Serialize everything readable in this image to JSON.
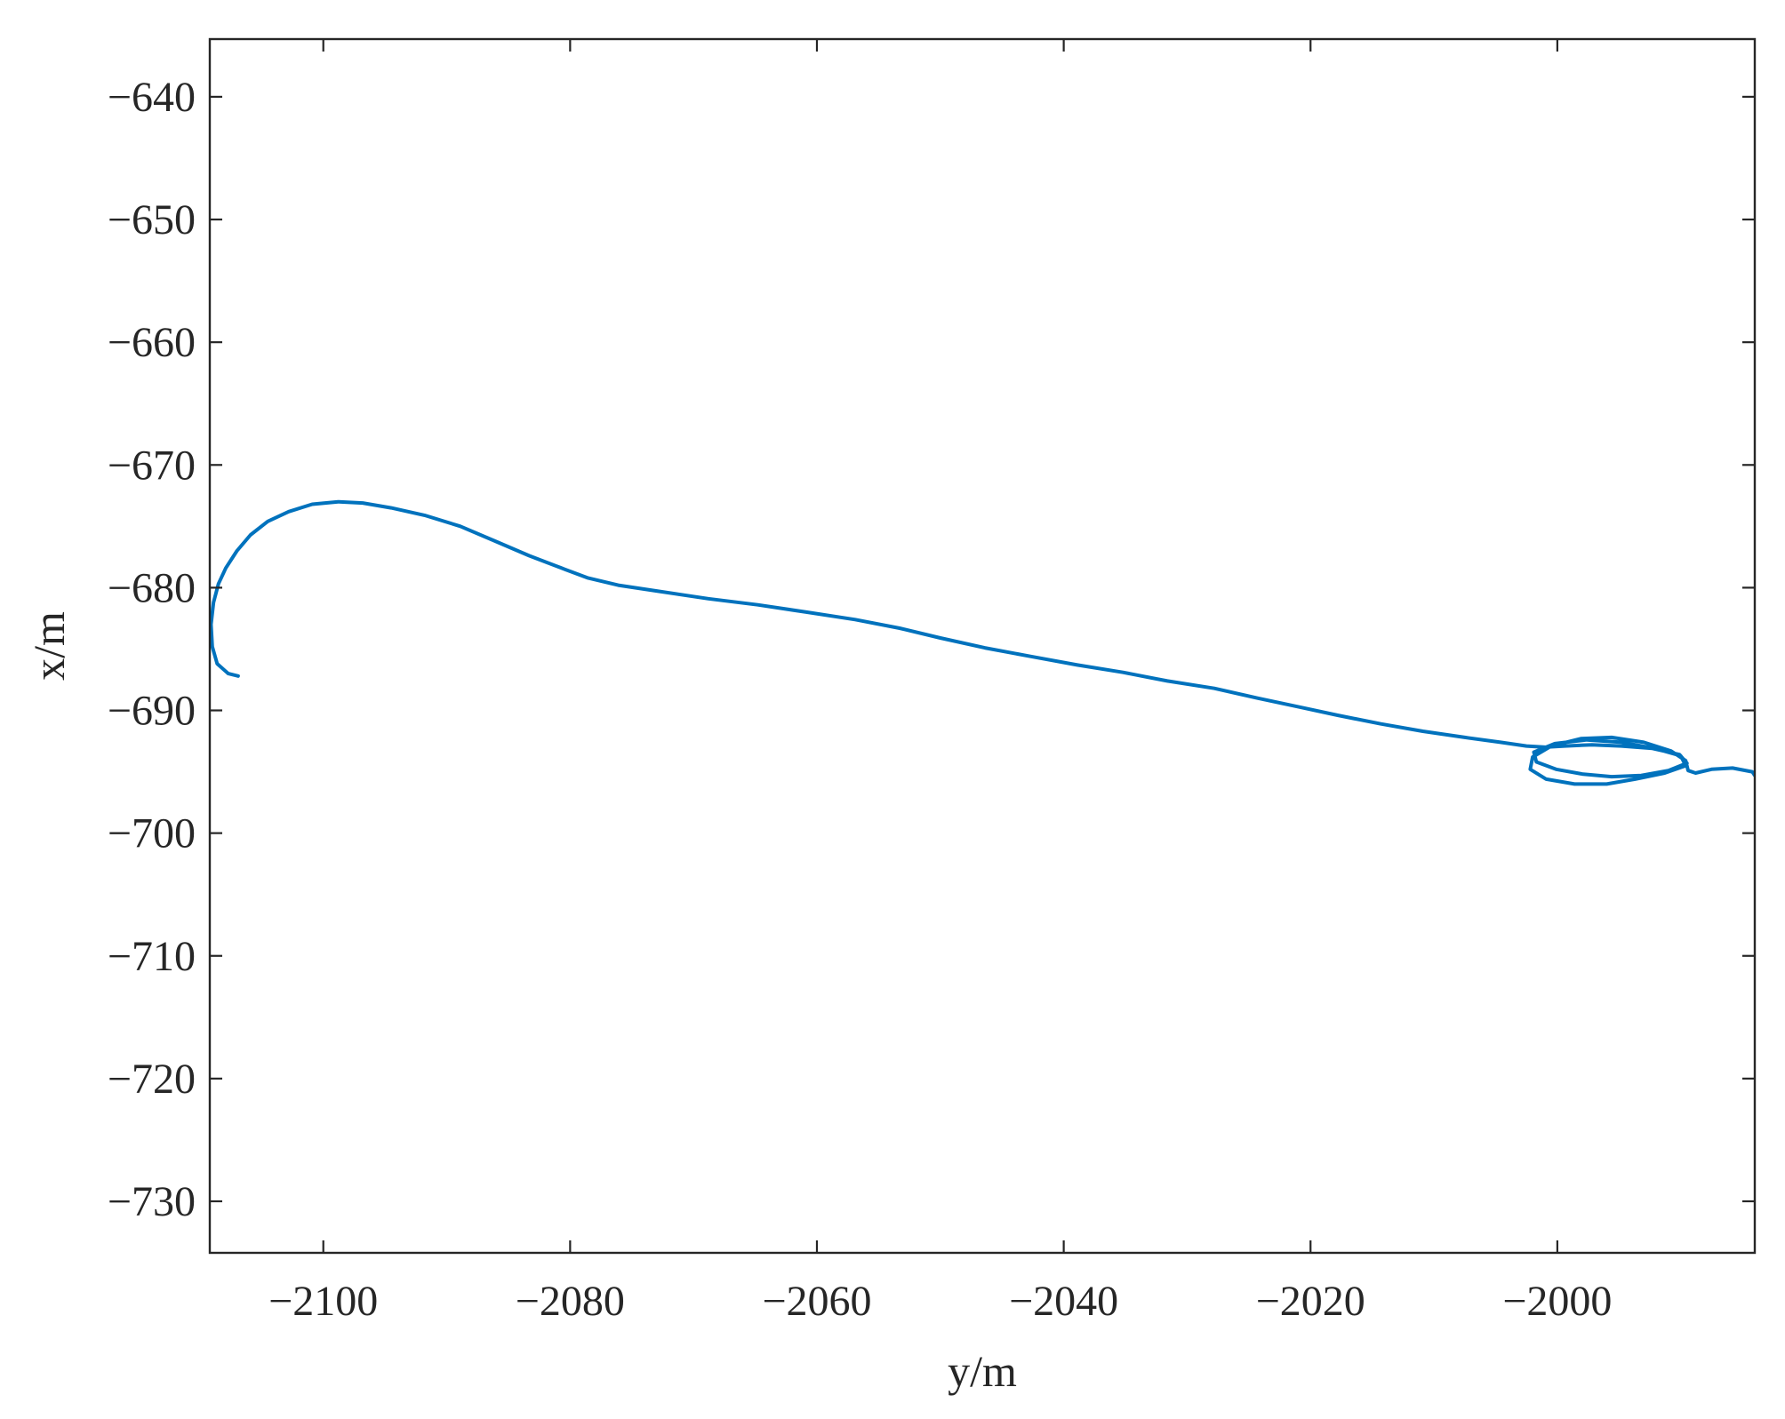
{
  "chart_data": {
    "type": "line",
    "title": "",
    "xlabel": "y/m",
    "ylabel": "x/m",
    "xlim": [
      -2109.2,
      -1984.0
    ],
    "ylim": [
      -734.2,
      -635.3
    ],
    "xticks": [
      -2100,
      -2080,
      -2060,
      -2040,
      -2020,
      -2000
    ],
    "yticks": [
      -640,
      -650,
      -660,
      -670,
      -680,
      -690,
      -700,
      -710,
      -720,
      -730
    ],
    "xtick_labels": [
      "−2100",
      "−2080",
      "−2060",
      "−2040",
      "−2020",
      "−2000"
    ],
    "ytick_labels": [
      "−640",
      "−650",
      "−660",
      "−670",
      "−680",
      "−690",
      "−700",
      "−710",
      "−720",
      "−730"
    ],
    "grid": false,
    "line_color": "#0072BD",
    "series": [
      {
        "x": [
          -2106.9,
          -2107.7,
          -2108.6,
          -2109.0,
          -2109.1,
          -2108.9,
          -2108.5,
          -2107.9,
          -2107.0,
          -2105.9,
          -2104.5,
          -2102.8,
          -2100.9,
          -2098.8,
          -2096.8,
          -2094.5,
          -2091.8,
          -2088.9,
          -2086.1,
          -2083.3,
          -2080.7,
          -2078.6,
          -2076.1,
          -2072.8,
          -2068.8,
          -2064.8,
          -2060.8,
          -2056.9,
          -2053.3,
          -2050.0,
          -2046.4,
          -2042.7,
          -2038.9,
          -2035.2,
          -2031.6,
          -2027.8,
          -2024.3,
          -2021.0,
          -2017.8,
          -2014.3,
          -2010.9,
          -2007.5,
          -2004.6,
          -2002.5,
          -2001.0,
          -1999.4,
          -1997.2,
          -1994.8,
          -1992.3,
          -1990.1,
          -1989.5,
          -1991.0,
          -1993.2,
          -1995.6,
          -1997.9,
          -2000.1,
          -2001.7,
          -2001.9,
          -2000.2,
          -1997.6,
          -1994.8,
          -1992.1,
          -1990.0,
          -1989.6,
          -1991.3,
          -1993.7,
          -1996.0,
          -1998.6,
          -2000.9,
          -2002.2,
          -2002.0,
          -2000.5,
          -1998.1,
          -1995.6,
          -1993.0,
          -1990.8,
          -1989.6,
          -1989.4,
          -1988.8,
          -1987.5,
          -1985.8,
          -1984.2,
          -1984.0
        ],
        "y": [
          -687.2,
          -687.0,
          -686.2,
          -684.8,
          -683.0,
          -681.2,
          -679.7,
          -678.4,
          -677.0,
          -675.7,
          -674.6,
          -673.8,
          -673.2,
          -673.0,
          -673.1,
          -673.5,
          -674.1,
          -675.0,
          -676.2,
          -677.4,
          -678.4,
          -679.2,
          -679.8,
          -680.3,
          -680.9,
          -681.4,
          -682.0,
          -682.6,
          -683.3,
          -684.1,
          -684.9,
          -685.6,
          -686.3,
          -686.9,
          -687.6,
          -688.2,
          -689.0,
          -689.7,
          -690.4,
          -691.1,
          -691.7,
          -692.2,
          -692.6,
          -692.9,
          -693.0,
          -692.9,
          -692.8,
          -692.9,
          -693.1,
          -693.6,
          -694.3,
          -694.9,
          -695.3,
          -695.4,
          -695.2,
          -694.8,
          -694.2,
          -693.4,
          -692.7,
          -692.4,
          -692.6,
          -693.1,
          -693.7,
          -694.5,
          -695.1,
          -695.6,
          -696.0,
          -696.0,
          -695.6,
          -694.8,
          -693.8,
          -692.9,
          -692.3,
          -692.2,
          -692.6,
          -693.3,
          -694.1,
          -694.9,
          -695.1,
          -694.8,
          -694.7,
          -695.0,
          -695.3
        ]
      }
    ]
  }
}
